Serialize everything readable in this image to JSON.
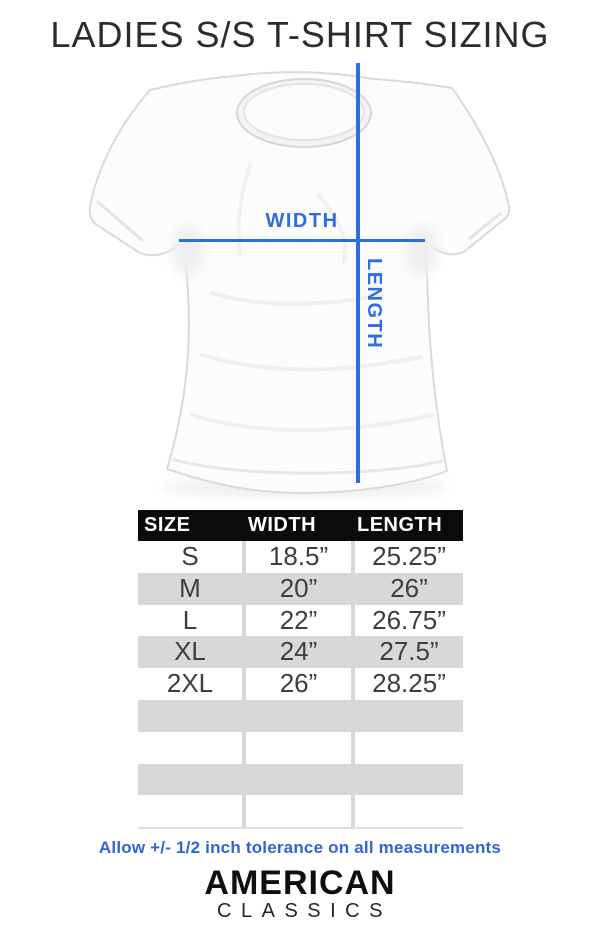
{
  "title": "LADIES S/S T-SHIRT SIZING",
  "colors": {
    "accent_blue": "#2e6de0",
    "note_blue": "#3164d4",
    "stripe_gray": "#d8d8d8",
    "header_bg": "#0b0b0b",
    "header_text": "#ffffff"
  },
  "diagram": {
    "width_label": "WIDTH",
    "length_label": "LENGTH"
  },
  "size_table": {
    "columns": [
      "SIZE",
      "WIDTH",
      "LENGTH"
    ],
    "rows": [
      {
        "size": "S",
        "width": "18.5”",
        "length": "25.25”"
      },
      {
        "size": "M",
        "width": "20”",
        "length": "26”"
      },
      {
        "size": "L",
        "width": "22”",
        "length": "26.75”"
      },
      {
        "size": "XL",
        "width": "24”",
        "length": "27.5”"
      },
      {
        "size": "2XL",
        "width": "26”",
        "length": "28.25”"
      }
    ],
    "empty_rows": 4
  },
  "note": "Allow +/- 1/2 inch tolerance on all measurements",
  "brand": {
    "line1": "AMERICAN",
    "line2": "CLASSICS"
  }
}
